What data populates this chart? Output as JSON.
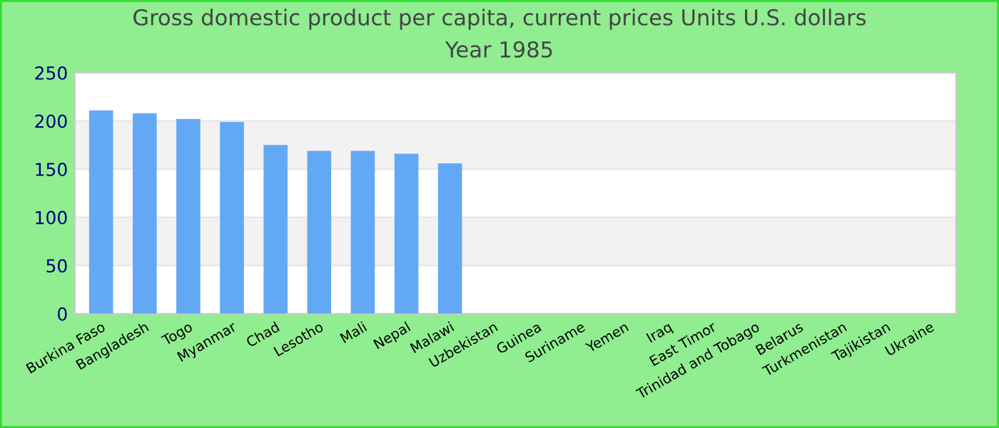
{
  "chart_data": {
    "type": "bar",
    "title": "Gross domestic product per capita, current prices Units U.S. dollars",
    "subtitle": "Year 1985",
    "categories": [
      "Burkina Faso",
      "Bangladesh",
      "Togo",
      "Myanmar",
      "Chad",
      "Lesotho",
      "Mali",
      "Nepal",
      "Malawi",
      "Uzbekistan",
      "Guinea",
      "Suriname",
      "Yemen",
      "Iraq",
      "East Timor",
      "Trinidad and Tobago",
      "Belarus",
      "Turkmenistan",
      "Tajikistan",
      "Ukraine"
    ],
    "values": [
      211,
      208,
      202,
      199,
      175,
      169,
      169,
      166,
      156,
      null,
      null,
      null,
      null,
      null,
      null,
      null,
      null,
      null,
      null,
      null
    ],
    "color": "#63a8f5",
    "ylim": [
      0,
      250
    ],
    "yticks": [
      0,
      50,
      100,
      150,
      200,
      250
    ],
    "grid": "y",
    "legend": false
  }
}
